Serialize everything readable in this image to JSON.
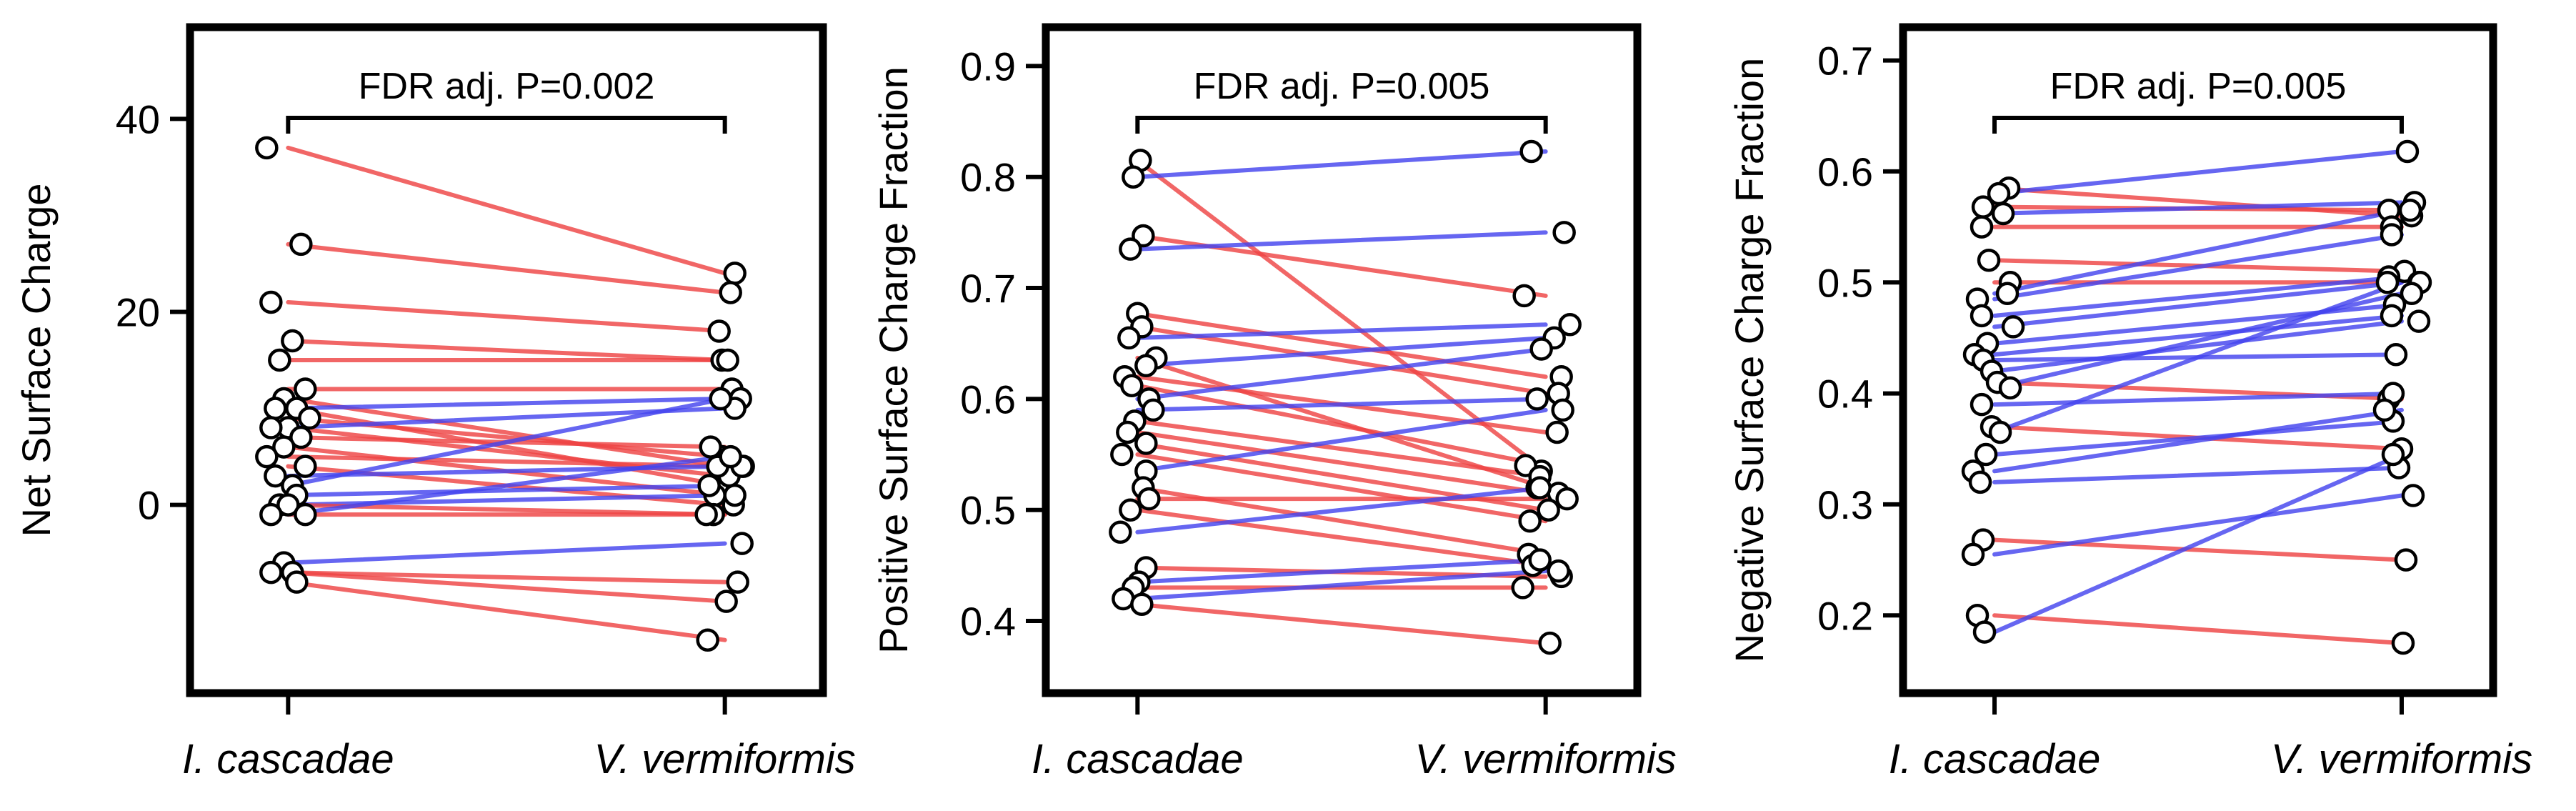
{
  "chart_data": [
    {
      "type": "paired-dot",
      "ylabel": "Net Surface Charge",
      "categories": [
        "I. cascadae",
        "V. vermiformis"
      ],
      "ylim": [
        -19.5,
        49.5
      ],
      "yticks": [
        0,
        20,
        40
      ],
      "annotation": "FDR adj. P=0.002",
      "line_colors": {
        "increase": "#4444ee",
        "decrease": "#ee4444"
      },
      "pairs": [
        [
          37,
          24
        ],
        [
          27,
          22
        ],
        [
          21,
          18
        ],
        [
          17,
          15
        ],
        [
          15,
          15
        ],
        [
          12,
          12
        ],
        [
          11,
          4
        ],
        [
          10,
          11
        ],
        [
          10,
          2
        ],
        [
          9,
          5
        ],
        [
          8,
          10
        ],
        [
          8,
          3
        ],
        [
          7,
          6
        ],
        [
          6,
          1
        ],
        [
          5,
          4
        ],
        [
          4,
          0
        ],
        [
          3,
          4
        ],
        [
          2,
          11
        ],
        [
          1,
          2
        ],
        [
          0,
          1
        ],
        [
          0,
          -1
        ],
        [
          -1,
          5
        ],
        [
          -1,
          -1
        ],
        [
          -6,
          -4
        ],
        [
          -7,
          -8
        ],
        [
          -7,
          -10
        ],
        [
          -8,
          -14
        ]
      ]
    },
    {
      "type": "paired-dot",
      "ylabel": "Positive Surface Charge Fraction",
      "categories": [
        "I. cascadae",
        "V. vermiformis"
      ],
      "ylim": [
        0.335,
        0.935
      ],
      "yticks": [
        0.4,
        0.5,
        0.6,
        0.7,
        0.8,
        0.9
      ],
      "annotation": "FDR adj. P=0.005",
      "line_colors": {
        "increase": "#4444ee",
        "decrease": "#ee4444"
      },
      "pairs": [
        [
          0.815,
          0.535
        ],
        [
          0.8,
          0.823
        ],
        [
          0.747,
          0.693
        ],
        [
          0.735,
          0.75
        ],
        [
          0.677,
          0.62
        ],
        [
          0.665,
          0.605
        ],
        [
          0.655,
          0.667
        ],
        [
          0.637,
          0.52
        ],
        [
          0.63,
          0.655
        ],
        [
          0.62,
          0.57
        ],
        [
          0.612,
          0.54
        ],
        [
          0.6,
          0.645
        ],
        [
          0.59,
          0.6
        ],
        [
          0.58,
          0.53
        ],
        [
          0.57,
          0.515
        ],
        [
          0.56,
          0.5
        ],
        [
          0.55,
          0.49
        ],
        [
          0.535,
          0.59
        ],
        [
          0.52,
          0.46
        ],
        [
          0.51,
          0.51
        ],
        [
          0.5,
          0.45
        ],
        [
          0.48,
          0.52
        ],
        [
          0.448,
          0.44
        ],
        [
          0.435,
          0.455
        ],
        [
          0.43,
          0.43
        ],
        [
          0.42,
          0.445
        ],
        [
          0.415,
          0.38
        ]
      ]
    },
    {
      "type": "paired-dot",
      "ylabel": "Negative Surface Charge Fraction",
      "categories": [
        "I. cascadae",
        "V. vermiformis"
      ],
      "ylim": [
        0.13,
        0.73
      ],
      "yticks": [
        0.2,
        0.3,
        0.4,
        0.5,
        0.6,
        0.7
      ],
      "annotation": "FDR adj. P=0.005",
      "line_colors": {
        "increase": "#4444ee",
        "decrease": "#ee4444"
      },
      "pairs": [
        [
          0.585,
          0.56
        ],
        [
          0.58,
          0.618
        ],
        [
          0.568,
          0.565
        ],
        [
          0.562,
          0.572
        ],
        [
          0.55,
          0.55
        ],
        [
          0.52,
          0.51
        ],
        [
          0.5,
          0.5
        ],
        [
          0.49,
          0.565
        ],
        [
          0.485,
          0.543
        ],
        [
          0.47,
          0.505
        ],
        [
          0.46,
          0.5
        ],
        [
          0.445,
          0.48
        ],
        [
          0.435,
          0.47
        ],
        [
          0.43,
          0.435
        ],
        [
          0.42,
          0.465
        ],
        [
          0.41,
          0.395
        ],
        [
          0.405,
          0.49
        ],
        [
          0.39,
          0.4
        ],
        [
          0.37,
          0.35
        ],
        [
          0.365,
          0.5
        ],
        [
          0.345,
          0.375
        ],
        [
          0.33,
          0.385
        ],
        [
          0.32,
          0.333
        ],
        [
          0.268,
          0.25
        ],
        [
          0.255,
          0.308
        ],
        [
          0.2,
          0.175
        ],
        [
          0.185,
          0.345
        ]
      ]
    }
  ]
}
